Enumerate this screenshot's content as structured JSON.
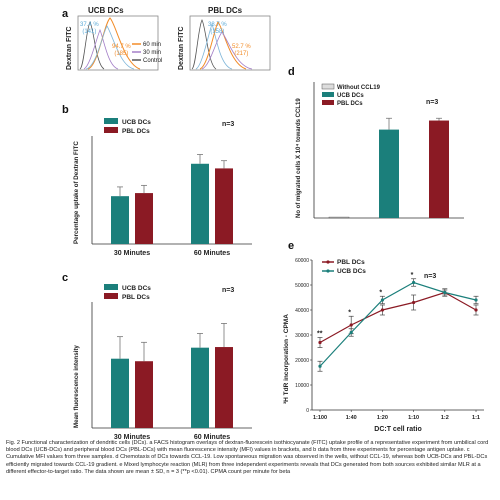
{
  "colors": {
    "teal": "#1b7f7b",
    "maroon": "#8b1a24",
    "orange": "#f28c28",
    "purple": "#a47fc8",
    "gray": "#9a9a9a",
    "black": "#111111"
  },
  "panel_a": {
    "letter": "a",
    "ylabel": "Dextran FITC",
    "left": {
      "title": "UCB DCs",
      "pct_control": "37.4 %",
      "mfi_control": "(141)",
      "pct_60": "94.7 %",
      "mfi_60": "(185)"
    },
    "right": {
      "title": "PBL DCs",
      "pct_control": "38.7 %",
      "mfi_control": "(158)",
      "pct_60": "52.7 %",
      "mfi_60": "(217)"
    },
    "legend": [
      "60 min",
      "30 min",
      "Control"
    ]
  },
  "panel_b": {
    "letter": "b",
    "n": "n=3",
    "legend": [
      "UCB DCs",
      "PBL DCs"
    ],
    "chart_data": {
      "type": "bar",
      "categories": [
        "30 Minutes",
        "60 Minutes"
      ],
      "series": [
        {
          "name": "UCB DCs",
          "values": [
            31,
            52
          ],
          "errors": [
            6,
            6
          ]
        },
        {
          "name": "PBL DCs",
          "values": [
            33,
            49
          ],
          "errors": [
            5,
            5
          ]
        }
      ],
      "ylabel": "Percentage uptake of Dextran FITC",
      "ylim": [
        0,
        70
      ]
    }
  },
  "panel_c": {
    "letter": "c",
    "n": "n=3",
    "legend": [
      "UCB DCs",
      "PBL DCs"
    ],
    "chart_data": {
      "type": "bar",
      "categories": [
        "30 Minutes",
        "60 Minutes"
      ],
      "series": [
        {
          "name": "UCB DCs",
          "values": [
            220,
            255
          ],
          "errors": [
            70,
            45
          ]
        },
        {
          "name": "PBL DCs",
          "values": [
            212,
            257
          ],
          "errors": [
            60,
            75
          ]
        }
      ],
      "ylabel": "Mean fluorescence intensity",
      "ylim": [
        0,
        400
      ]
    }
  },
  "panel_d": {
    "letter": "d",
    "n": "n=3",
    "legend": [
      "Without CCL19",
      "UCB DCs",
      "PBL DCs"
    ],
    "chart_data": {
      "type": "bar",
      "categories": [
        "Without CCL19",
        "UCB DCs",
        "PBL DCs"
      ],
      "values": [
        0.2,
        19.5,
        21.5
      ],
      "errors": [
        0,
        2.5,
        0.5
      ],
      "ylabel": "No of migrated cells X 10⁴ towards CCL19",
      "ylim": [
        0,
        30
      ]
    }
  },
  "panel_e": {
    "letter": "e",
    "n": "n=3",
    "legend": [
      "PBL DCs",
      "UCB DCs"
    ],
    "star_marks": [
      "**",
      "*",
      "*",
      "*"
    ],
    "chart_data": {
      "type": "line",
      "x": [
        "1:100",
        "1:40",
        "1:20",
        "1:10",
        "1:2",
        "1:1"
      ],
      "series": [
        {
          "name": "PBL DCs",
          "values": [
            27000,
            34000,
            40000,
            43000,
            47000,
            40000
          ],
          "errors": [
            2000,
            3500,
            2000,
            3000,
            1500,
            2000
          ]
        },
        {
          "name": "UCB DCs",
          "values": [
            17500,
            31000,
            44000,
            51000,
            47000,
            44000
          ],
          "errors": [
            2000,
            1500,
            1500,
            1500,
            1000,
            1500
          ]
        }
      ],
      "xlabel": "DC:T cell ratio",
      "ylabel": "³H TdR incorporation - CPMA",
      "yticks": [
        "0",
        "10000",
        "20000",
        "30000",
        "40000",
        "50000",
        "60000"
      ],
      "ylim": [
        0,
        60000
      ]
    }
  },
  "caption": {
    "text": "Fig. 2 Functional characterization of dendritic cells (DCs). a FACS histogram overlays of dextran-fluorescein isothiocyanate (FITC) uptake profile of a representative experiment from umbilical cord blood DCs (UCB-DCs) and peripheral blood DCs (PBL-DCs) with mean fluorescence intensity (MFI) values in brackets, and b data from three experiments for percentage antigen uptake. c Cumulative MFI values from three samples. d Chemotaxis of DCs towards CCL-19. Low spontaneous migration was observed in the wells, without CCL-19, whereas both UCB-DCs and PBL-DCs efficiently migrated towards CCL-19 gradient. e Mixed lymphocyte reaction (MLR) from three independent experiments reveals that DCs generated from both sources exhibited similar MLR at a different effector-to-target ratio. The data shown are mean ± SD, n = 3 (**p <0.01). CPMA count per minute for beta"
  }
}
